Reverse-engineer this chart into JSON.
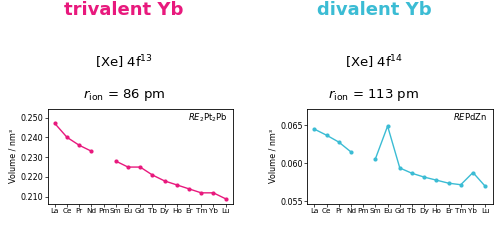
{
  "left_title": "trivalent Yb",
  "left_title_color": "#e8197d",
  "left_label": "RE₂Pt₂Pb",
  "left_xlabel": [
    "La",
    "Ce",
    "Pr",
    "Nd",
    "Pm",
    "Sm",
    "Eu",
    "Gd",
    "Tb",
    "Dy",
    "Ho",
    "Er",
    "Tm",
    "Yb",
    "Lu"
  ],
  "left_x": [
    0,
    1,
    2,
    3,
    4,
    5,
    6,
    7,
    8,
    9,
    10,
    11,
    12,
    13,
    14
  ],
  "left_y": [
    0.247,
    0.24,
    0.236,
    0.233,
    null,
    0.228,
    0.225,
    0.225,
    0.221,
    0.218,
    0.216,
    0.214,
    0.212,
    0.212,
    0.209
  ],
  "left_ylim": [
    0.2065,
    0.2545
  ],
  "left_yticks": [
    0.21,
    0.22,
    0.23,
    0.24,
    0.25
  ],
  "left_color": "#e8197d",
  "left_config1": "[Xe] 4f",
  "left_sup1": "13",
  "left_config2_r": "r",
  "left_config2_sub": "ion",
  "left_config2_rest": " = 86 pm",
  "right_title": "divalent Yb",
  "right_title_color": "#3bbcd4",
  "right_label": "REPdZn",
  "right_xlabel": [
    "La",
    "Ce",
    "Pr",
    "Nd",
    "Pm",
    "Sm",
    "Eu",
    "Gd",
    "Tb",
    "Dy",
    "Ho",
    "Er",
    "Tm",
    "Yb",
    "Lu"
  ],
  "right_x": [
    0,
    1,
    2,
    3,
    4,
    5,
    6,
    7,
    8,
    9,
    10,
    11,
    12,
    13,
    14
  ],
  "right_y": [
    0.0645,
    0.0637,
    0.0628,
    0.0615,
    null,
    0.0606,
    0.0649,
    0.0594,
    0.0587,
    0.0582,
    0.0578,
    0.0574,
    0.0572,
    0.0588,
    0.057
  ],
  "right_ylim": [
    0.0547,
    0.0672
  ],
  "right_yticks": [
    0.055,
    0.06,
    0.065
  ],
  "right_color": "#3bbcd4",
  "right_config1": "[Xe] 4f",
  "right_sup1": "14",
  "right_config2_r": "r",
  "right_config2_sub": "ion",
  "right_config2_rest": " = 113 pm",
  "ylabel": "Volume / nm³",
  "bg_color": "#ffffff"
}
